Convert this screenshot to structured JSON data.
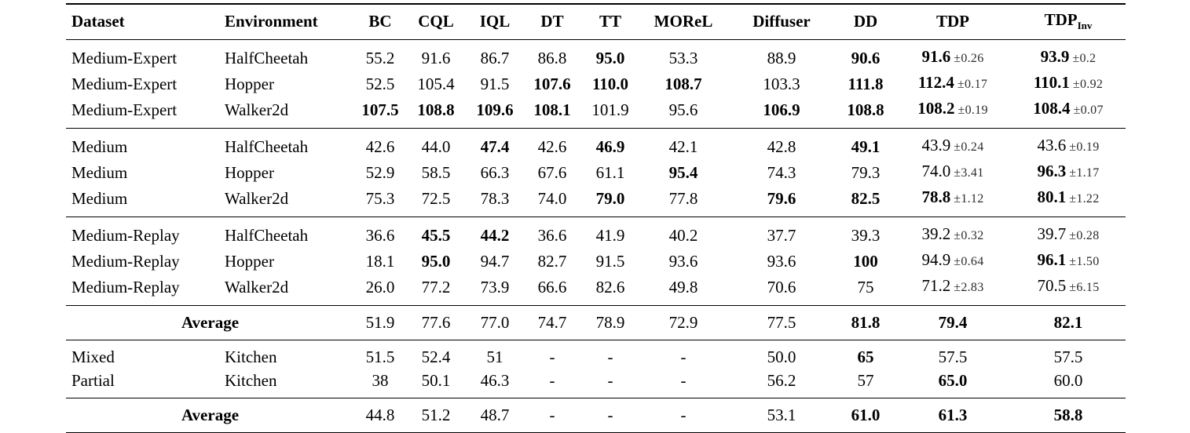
{
  "table": {
    "columns": [
      {
        "label": "Dataset"
      },
      {
        "label": "Environment"
      },
      {
        "label": "BC"
      },
      {
        "label": "CQL"
      },
      {
        "label": "IQL"
      },
      {
        "label": "DT"
      },
      {
        "label": "TT"
      },
      {
        "label": "MOReL"
      },
      {
        "label": "Diffuser"
      },
      {
        "label": "DD"
      },
      {
        "label": "TDP"
      },
      {
        "label": "TDP",
        "subscript": "Inv"
      }
    ],
    "groups": [
      {
        "type": "rows",
        "rows": [
          {
            "dataset": "Medium-Expert",
            "environment": "HalfCheetah",
            "values": [
              {
                "v": "55.2"
              },
              {
                "v": "91.6"
              },
              {
                "v": "86.7"
              },
              {
                "v": "86.8"
              },
              {
                "v": "95.0",
                "bold": true
              },
              {
                "v": "53.3"
              },
              {
                "v": "88.9"
              },
              {
                "v": "90.6",
                "bold": true
              },
              {
                "v": "91.6",
                "bold": true,
                "err": "±0.26"
              },
              {
                "v": "93.9",
                "bold": true,
                "err": "±0.2"
              }
            ]
          },
          {
            "dataset": "Medium-Expert",
            "environment": "Hopper",
            "values": [
              {
                "v": "52.5"
              },
              {
                "v": "105.4"
              },
              {
                "v": "91.5"
              },
              {
                "v": "107.6",
                "bold": true
              },
              {
                "v": "110.0",
                "bold": true
              },
              {
                "v": "108.7",
                "bold": true
              },
              {
                "v": "103.3"
              },
              {
                "v": "111.8",
                "bold": true
              },
              {
                "v": "112.4",
                "bold": true,
                "err": "±0.17"
              },
              {
                "v": "110.1",
                "bold": true,
                "err": "±0.92"
              }
            ]
          },
          {
            "dataset": "Medium-Expert",
            "environment": "Walker2d",
            "values": [
              {
                "v": "107.5",
                "bold": true
              },
              {
                "v": "108.8",
                "bold": true
              },
              {
                "v": "109.6",
                "bold": true
              },
              {
                "v": "108.1",
                "bold": true
              },
              {
                "v": "101.9"
              },
              {
                "v": "95.6"
              },
              {
                "v": "106.9",
                "bold": true
              },
              {
                "v": "108.8",
                "bold": true
              },
              {
                "v": "108.2",
                "bold": true,
                "err": "±0.19"
              },
              {
                "v": "108.4",
                "bold": true,
                "err": "±0.07"
              }
            ]
          }
        ]
      },
      {
        "type": "rows",
        "rows": [
          {
            "dataset": "Medium",
            "environment": "HalfCheetah",
            "values": [
              {
                "v": "42.6"
              },
              {
                "v": "44.0"
              },
              {
                "v": "47.4",
                "bold": true
              },
              {
                "v": "42.6"
              },
              {
                "v": "46.9",
                "bold": true
              },
              {
                "v": "42.1"
              },
              {
                "v": "42.8"
              },
              {
                "v": "49.1",
                "bold": true
              },
              {
                "v": "43.9",
                "err": "±0.24"
              },
              {
                "v": "43.6",
                "err": "±0.19"
              }
            ]
          },
          {
            "dataset": "Medium",
            "environment": "Hopper",
            "values": [
              {
                "v": "52.9"
              },
              {
                "v": "58.5"
              },
              {
                "v": "66.3"
              },
              {
                "v": "67.6"
              },
              {
                "v": "61.1"
              },
              {
                "v": "95.4",
                "bold": true
              },
              {
                "v": "74.3"
              },
              {
                "v": "79.3"
              },
              {
                "v": "74.0",
                "err": "±3.41"
              },
              {
                "v": "96.3",
                "bold": true,
                "err": "±1.17"
              }
            ]
          },
          {
            "dataset": "Medium",
            "environment": "Walker2d",
            "values": [
              {
                "v": "75.3"
              },
              {
                "v": "72.5"
              },
              {
                "v": "78.3"
              },
              {
                "v": "74.0"
              },
              {
                "v": "79.0",
                "bold": true
              },
              {
                "v": "77.8"
              },
              {
                "v": "79.6",
                "bold": true
              },
              {
                "v": "82.5",
                "bold": true
              },
              {
                "v": "78.8",
                "bold": true,
                "err": "±1.12"
              },
              {
                "v": "80.1",
                "bold": true,
                "err": "±1.22"
              }
            ]
          }
        ]
      },
      {
        "type": "rows",
        "rows": [
          {
            "dataset": "Medium-Replay",
            "environment": "HalfCheetah",
            "values": [
              {
                "v": "36.6"
              },
              {
                "v": "45.5",
                "bold": true
              },
              {
                "v": "44.2",
                "bold": true
              },
              {
                "v": "36.6"
              },
              {
                "v": "41.9"
              },
              {
                "v": "40.2"
              },
              {
                "v": "37.7"
              },
              {
                "v": "39.3"
              },
              {
                "v": "39.2",
                "err": "±0.32"
              },
              {
                "v": "39.7",
                "err": "±0.28"
              }
            ]
          },
          {
            "dataset": "Medium-Replay",
            "environment": "Hopper",
            "values": [
              {
                "v": "18.1"
              },
              {
                "v": "95.0",
                "bold": true
              },
              {
                "v": "94.7"
              },
              {
                "v": "82.7"
              },
              {
                "v": "91.5"
              },
              {
                "v": "93.6"
              },
              {
                "v": "93.6"
              },
              {
                "v": "100",
                "bold": true
              },
              {
                "v": "94.9",
                "err": "±0.64"
              },
              {
                "v": "96.1",
                "bold": true,
                "err": "±1.50"
              }
            ]
          },
          {
            "dataset": "Medium-Replay",
            "environment": "Walker2d",
            "values": [
              {
                "v": "26.0"
              },
              {
                "v": "77.2"
              },
              {
                "v": "73.9"
              },
              {
                "v": "66.6"
              },
              {
                "v": "82.6"
              },
              {
                "v": "49.8"
              },
              {
                "v": "70.6"
              },
              {
                "v": "75"
              },
              {
                "v": "71.2",
                "err": "±2.83"
              },
              {
                "v": "70.5",
                "err": "±6.15"
              }
            ]
          }
        ]
      },
      {
        "type": "average",
        "label": "Average",
        "values": [
          {
            "v": "51.9"
          },
          {
            "v": "77.6"
          },
          {
            "v": "77.0"
          },
          {
            "v": "74.7"
          },
          {
            "v": "78.9"
          },
          {
            "v": "72.9"
          },
          {
            "v": "77.5"
          },
          {
            "v": "81.8",
            "bold": true
          },
          {
            "v": "79.4",
            "bold": true
          },
          {
            "v": "82.1",
            "bold": true
          }
        ]
      },
      {
        "type": "rows",
        "rows": [
          {
            "dataset": "Mixed",
            "environment": "Kitchen",
            "values": [
              {
                "v": "51.5"
              },
              {
                "v": "52.4"
              },
              {
                "v": "51"
              },
              {
                "v": "-"
              },
              {
                "v": "-"
              },
              {
                "v": "-"
              },
              {
                "v": "50.0"
              },
              {
                "v": "65",
                "bold": true
              },
              {
                "v": "57.5"
              },
              {
                "v": "57.5"
              }
            ]
          },
          {
            "dataset": "Partial",
            "environment": "Kitchen",
            "values": [
              {
                "v": "38"
              },
              {
                "v": "50.1"
              },
              {
                "v": "46.3"
              },
              {
                "v": "-"
              },
              {
                "v": "-"
              },
              {
                "v": "-"
              },
              {
                "v": "56.2"
              },
              {
                "v": "57"
              },
              {
                "v": "65.0",
                "bold": true
              },
              {
                "v": "60.0"
              }
            ]
          }
        ]
      },
      {
        "type": "average",
        "label": "Average",
        "values": [
          {
            "v": "44.8"
          },
          {
            "v": "51.2"
          },
          {
            "v": "48.7"
          },
          {
            "v": "-"
          },
          {
            "v": "-"
          },
          {
            "v": "-"
          },
          {
            "v": "53.1"
          },
          {
            "v": "61.0",
            "bold": true
          },
          {
            "v": "61.3",
            "bold": true
          },
          {
            "v": "58.8",
            "bold": true
          }
        ]
      }
    ]
  }
}
